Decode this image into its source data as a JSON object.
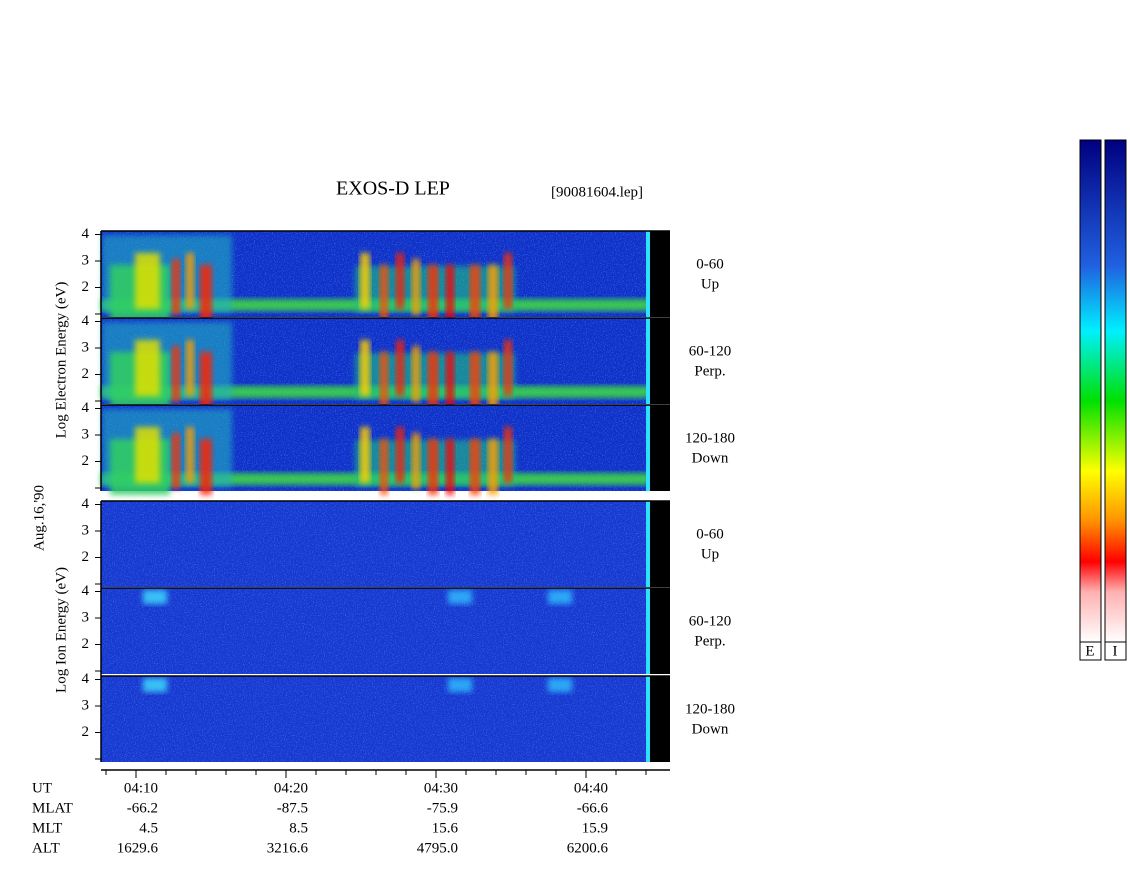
{
  "header": {
    "title": "EXOS-D LEP",
    "file": "[90081604.lep]",
    "date": "Aug.16,'90"
  },
  "electron": {
    "axis_label": "Log Electron Energy (eV)",
    "panels": [
      {
        "angle": "0-60",
        "direction": "Up"
      },
      {
        "angle": "60-120",
        "direction": "Perp."
      },
      {
        "angle": "120-180",
        "direction": "Down"
      }
    ]
  },
  "ion": {
    "axis_label": "Log Ion Energy (eV)",
    "panels": [
      {
        "angle": "0-60",
        "direction": "Up"
      },
      {
        "angle": "60-120",
        "direction": "Perp."
      },
      {
        "angle": "120-180",
        "direction": "Down"
      }
    ]
  },
  "yticks": [
    2,
    3,
    4
  ],
  "ephemeris": {
    "rows": [
      {
        "name": "UT",
        "values": [
          "04:10",
          "04:20",
          "04:30",
          "04:40"
        ]
      },
      {
        "name": "MLAT",
        "values": [
          "-66.2",
          "-87.5",
          "-75.9",
          "-66.6"
        ]
      },
      {
        "name": "MLT",
        "values": [
          "4.5",
          "8.5",
          "15.6",
          "15.9"
        ]
      },
      {
        "name": "ALT",
        "values": [
          "1629.6",
          "3216.6",
          "4795.0",
          "6200.6"
        ]
      }
    ]
  },
  "colorbar": {
    "labels": [
      "E",
      "I"
    ]
  }
}
